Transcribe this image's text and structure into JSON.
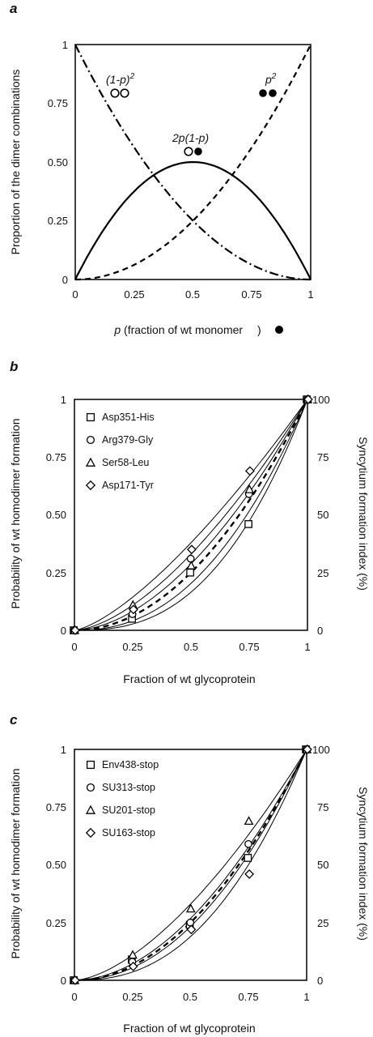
{
  "panels": [
    {
      "letter": "a",
      "ylabel": "Proportion of the dimer combinations",
      "xlabel_var": "p",
      "xlabel_rest": " (fraction of wt monomer ",
      "xlabel_end": ")",
      "xticks": [
        "0",
        "0.25",
        "0.5",
        "0.75",
        "1"
      ],
      "yticks": [
        "0",
        "0.25",
        "0.50",
        "0.75",
        "1"
      ],
      "curve_labels": [
        "(1-p)",
        "2",
        "p",
        "2",
        "2p(1-p)"
      ]
    },
    {
      "letter": "b",
      "ylabel": "Probability of wt homodimer formation",
      "y2label": "Syncytium formation index (%)",
      "xlabel": "Fraction of wt glycoprotein",
      "xticks": [
        "0",
        "0.25",
        "0.5",
        "0.75",
        "1"
      ],
      "yticks": [
        "0",
        "0.25",
        "0.50",
        "0.75",
        "1"
      ],
      "y2ticks": [
        "0",
        "25",
        "50",
        "75",
        "100"
      ],
      "legend": [
        "Asp351-His",
        "Arg379-Gly",
        "Ser58-Leu",
        "Asp171-Tyr"
      ]
    },
    {
      "letter": "c",
      "ylabel": "Probability of wt homodimer formation",
      "y2label": "Syncytium formation index (%)",
      "xlabel": "Fraction of wt glycoprotein",
      "xticks": [
        "0",
        "0.25",
        "0.5",
        "0.75",
        "1"
      ],
      "yticks": [
        "0",
        "0.25",
        "0.50",
        "0.75",
        "1"
      ],
      "y2ticks": [
        "0",
        "25",
        "50",
        "75",
        "100"
      ],
      "legend": [
        "Env438-stop",
        "SU313-stop",
        "SU201-stop",
        "SU163-stop"
      ]
    }
  ],
  "chart_data": [
    {
      "type": "line",
      "x": [
        0,
        0.1,
        0.2,
        0.3,
        0.4,
        0.5,
        0.6,
        0.7,
        0.8,
        0.9,
        1
      ],
      "xlim": [
        0,
        1
      ],
      "ylim": [
        0,
        1
      ],
      "grid": false,
      "series": [
        {
          "name": "(1-p)2",
          "style": "dash-dot",
          "values": [
            1,
            0.81,
            0.64,
            0.49,
            0.36,
            0.25,
            0.16,
            0.09,
            0.04,
            0.01,
            0
          ]
        },
        {
          "name": "p2",
          "style": "dashed",
          "values": [
            0,
            0.01,
            0.04,
            0.09,
            0.16,
            0.25,
            0.36,
            0.49,
            0.64,
            0.81,
            1
          ]
        },
        {
          "name": "2p(1-p)",
          "style": "solid",
          "values": [
            0,
            0.18,
            0.32,
            0.42,
            0.48,
            0.5,
            0.48,
            0.42,
            0.32,
            0.18,
            0
          ]
        }
      ]
    },
    {
      "type": "scatter",
      "x": [
        0,
        0.25,
        0.5,
        0.75,
        1
      ],
      "xlim": [
        0,
        1
      ],
      "ylim": [
        0,
        1
      ],
      "y2lim": [
        0,
        100
      ],
      "grid": false,
      "legend_position": "top-left",
      "series": [
        {
          "name": "Asp351-His",
          "marker": "square",
          "values": [
            0,
            5,
            25,
            46,
            100
          ]
        },
        {
          "name": "Arg379-Gly",
          "marker": "circle",
          "values": [
            0,
            7,
            31,
            59,
            100
          ]
        },
        {
          "name": "Ser58-Leu",
          "marker": "triangle",
          "values": [
            0,
            11,
            28,
            61,
            100
          ]
        },
        {
          "name": "Asp171-Tyr",
          "marker": "diamond",
          "values": [
            0,
            9,
            35,
            69,
            100
          ]
        }
      ],
      "reference_curve": {
        "style": "dashed",
        "x": [
          0,
          0.25,
          0.5,
          0.75,
          1
        ],
        "values": [
          0,
          0.0625,
          0.25,
          0.5625,
          1
        ]
      },
      "fit_curves_exponent": [
        1.4,
        1.6,
        1.8,
        2.3,
        2.6
      ]
    },
    {
      "type": "scatter",
      "x": [
        0,
        0.25,
        0.5,
        0.75,
        1
      ],
      "xlim": [
        0,
        1
      ],
      "ylim": [
        0,
        1
      ],
      "y2lim": [
        0,
        100
      ],
      "grid": false,
      "legend_position": "top-left",
      "series": [
        {
          "name": "Env438-stop",
          "marker": "square",
          "values": [
            0,
            9,
            24,
            53,
            100
          ]
        },
        {
          "name": "SU313-stop",
          "marker": "circle",
          "values": [
            0,
            8,
            25,
            59,
            100
          ]
        },
        {
          "name": "SU201-stop",
          "marker": "triangle",
          "values": [
            0,
            11,
            31,
            69,
            100
          ]
        },
        {
          "name": "SU163-stop",
          "marker": "diamond",
          "values": [
            0,
            6,
            22,
            46,
            100
          ]
        }
      ],
      "reference_curve": {
        "style": "dashed",
        "x": [
          0,
          0.25,
          0.5,
          0.75,
          1
        ],
        "values": [
          0,
          0.0625,
          0.25,
          0.5625,
          1
        ]
      },
      "fit_curves_exponent": [
        1.6,
        1.9,
        2.1,
        2.4
      ]
    }
  ]
}
